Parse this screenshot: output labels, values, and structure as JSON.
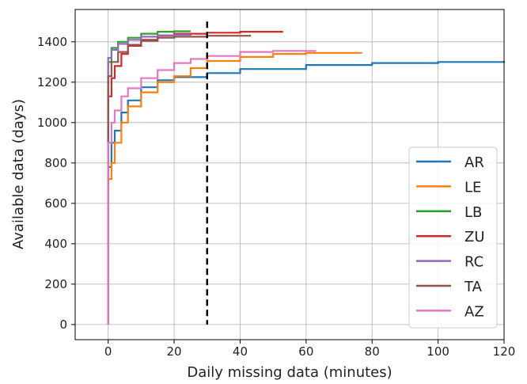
{
  "chart_data": {
    "type": "line",
    "xlabel": "Daily missing data (minutes)",
    "ylabel": "Available data (days)",
    "xlim": [
      -10,
      120
    ],
    "ylim": [
      -75,
      1560
    ],
    "x_ticks": [
      0,
      20,
      40,
      60,
      80,
      100,
      120
    ],
    "y_ticks": [
      0,
      200,
      400,
      600,
      800,
      1000,
      1200,
      1400
    ],
    "x_tick_labels": [
      "0",
      "20",
      "40",
      "60",
      "80",
      "100",
      "120"
    ],
    "y_tick_labels": [
      "0",
      "200",
      "400",
      "600",
      "800",
      "1000",
      "1200",
      "1400"
    ],
    "grid": true,
    "legend_position": "bottom-right",
    "threshold_line": {
      "x": 30,
      "style": "dashed",
      "color": "#000000"
    },
    "series": [
      {
        "name": "AR",
        "color": "#1f77b4",
        "points": [
          [
            0,
            0
          ],
          [
            0,
            780
          ],
          [
            1,
            900
          ],
          [
            2,
            960
          ],
          [
            4,
            1050
          ],
          [
            6,
            1110
          ],
          [
            10,
            1175
          ],
          [
            15,
            1210
          ],
          [
            20,
            1225
          ],
          [
            30,
            1245
          ],
          [
            40,
            1265
          ],
          [
            60,
            1285
          ],
          [
            80,
            1295
          ],
          [
            100,
            1300
          ],
          [
            120,
            1305
          ]
        ]
      },
      {
        "name": "LE",
        "color": "#ff7f0e",
        "points": [
          [
            0,
            0
          ],
          [
            0,
            720
          ],
          [
            1,
            800
          ],
          [
            2,
            900
          ],
          [
            4,
            1000
          ],
          [
            6,
            1080
          ],
          [
            10,
            1150
          ],
          [
            15,
            1200
          ],
          [
            20,
            1230
          ],
          [
            25,
            1270
          ],
          [
            30,
            1305
          ],
          [
            40,
            1325
          ],
          [
            50,
            1340
          ],
          [
            60,
            1345
          ],
          [
            77,
            1345
          ]
        ]
      },
      {
        "name": "LB",
        "color": "#2ca02c",
        "points": [
          [
            0,
            0
          ],
          [
            0,
            1300
          ],
          [
            1,
            1370
          ],
          [
            3,
            1400
          ],
          [
            6,
            1420
          ],
          [
            10,
            1440
          ],
          [
            15,
            1450
          ],
          [
            20,
            1452
          ],
          [
            25,
            1452
          ]
        ]
      },
      {
        "name": "ZU",
        "color": "#d62728",
        "points": [
          [
            0,
            0
          ],
          [
            0,
            1130
          ],
          [
            1,
            1220
          ],
          [
            2,
            1280
          ],
          [
            4,
            1340
          ],
          [
            6,
            1380
          ],
          [
            10,
            1410
          ],
          [
            15,
            1430
          ],
          [
            20,
            1440
          ],
          [
            30,
            1445
          ],
          [
            40,
            1450
          ],
          [
            53,
            1450
          ]
        ]
      },
      {
        "name": "RC",
        "color": "#9467bd",
        "points": [
          [
            0,
            0
          ],
          [
            0,
            1320
          ],
          [
            1,
            1360
          ],
          [
            3,
            1390
          ],
          [
            6,
            1410
          ],
          [
            10,
            1425
          ],
          [
            15,
            1432
          ],
          [
            20,
            1435
          ],
          [
            25,
            1437
          ]
        ]
      },
      {
        "name": "TA",
        "color": "#8c564b",
        "points": [
          [
            0,
            0
          ],
          [
            0,
            1230
          ],
          [
            1,
            1300
          ],
          [
            3,
            1350
          ],
          [
            6,
            1385
          ],
          [
            10,
            1405
          ],
          [
            15,
            1420
          ],
          [
            20,
            1425
          ],
          [
            30,
            1430
          ],
          [
            43,
            1435
          ]
        ]
      },
      {
        "name": "AZ",
        "color": "#e377c2",
        "points": [
          [
            0,
            0
          ],
          [
            0,
            900
          ],
          [
            1,
            1000
          ],
          [
            2,
            1060
          ],
          [
            4,
            1130
          ],
          [
            6,
            1170
          ],
          [
            10,
            1220
          ],
          [
            15,
            1260
          ],
          [
            20,
            1295
          ],
          [
            25,
            1315
          ],
          [
            30,
            1330
          ],
          [
            40,
            1350
          ],
          [
            50,
            1355
          ],
          [
            63,
            1355
          ]
        ]
      }
    ]
  }
}
